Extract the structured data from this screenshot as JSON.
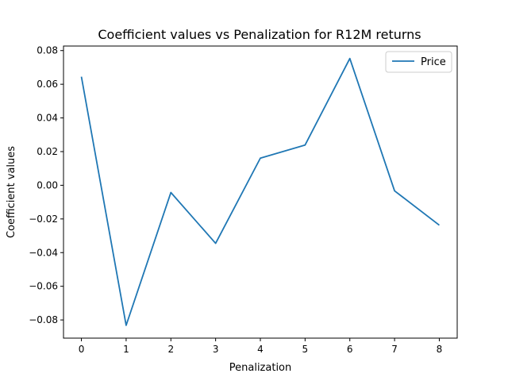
{
  "chart_data": {
    "type": "line",
    "title": "Coefficient values vs Penalization for R12M returns",
    "xlabel": "Penalization",
    "ylabel": "Coefficient values",
    "x": [
      0,
      1,
      2,
      3,
      4,
      5,
      6,
      7,
      8
    ],
    "xlim": [
      -0.4,
      8.4
    ],
    "ylim": [
      -0.0908,
      0.0827
    ],
    "x_ticks": [
      0,
      1,
      2,
      3,
      4,
      5,
      6,
      7,
      8
    ],
    "x_tick_labels": [
      "0",
      "1",
      "2",
      "3",
      "4",
      "5",
      "6",
      "7",
      "8"
    ],
    "y_ticks": [
      -0.08,
      -0.06,
      -0.04,
      -0.02,
      0.0,
      0.02,
      0.04,
      0.06,
      0.08
    ],
    "y_tick_labels": [
      "−0.08",
      "−0.06",
      "−0.04",
      "−0.02",
      "0.00",
      "0.02",
      "0.04",
      "0.06",
      "0.08"
    ],
    "series": [
      {
        "name": "Price",
        "color": "#1f77b4",
        "values": [
          0.0645,
          -0.0832,
          -0.0043,
          -0.0345,
          0.0161,
          0.0239,
          0.0753,
          -0.0033,
          -0.0237
        ]
      }
    ],
    "grid": false,
    "legend": {
      "position": "top-right"
    }
  }
}
